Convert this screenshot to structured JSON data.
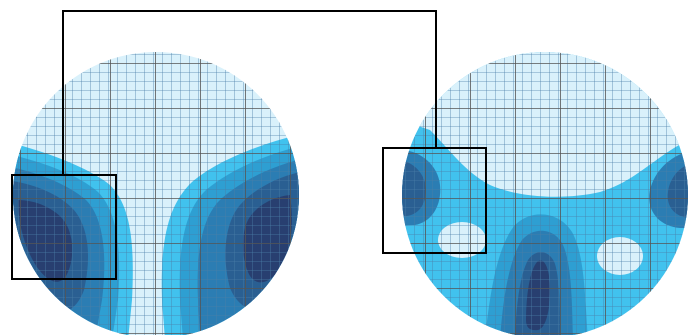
{
  "figure": {
    "panels": [
      {
        "name": "left-disc",
        "description_label": ""
      },
      {
        "name": "right-disc",
        "description_label": ""
      }
    ],
    "colors": {
      "background": "#ffffff",
      "level_0": "#d9f1fb",
      "level_1": "#41c2ee",
      "level_2": "#2e9fd2",
      "level_3": "#2b7db3",
      "level_4": "#2a5f92",
      "level_5": "#283f70",
      "grid_fine": "#4a7ea8",
      "grid_coarse": "#555555",
      "frame": "#000000"
    }
  }
}
